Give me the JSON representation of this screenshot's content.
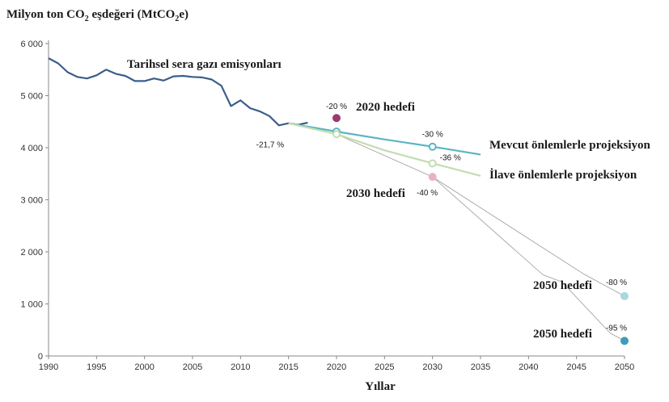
{
  "chart_data": {
    "type": "line",
    "title_parts": {
      "main": "Milyon ton CO",
      "sub": "2",
      "rest": " eşdeğeri (MtCO",
      "sub2": "2",
      "end": "e)"
    },
    "xlabel": "Yıllar",
    "xlim": [
      1990,
      2050
    ],
    "ylim": [
      0,
      6000
    ],
    "x_ticks": [
      1990,
      1995,
      2000,
      2005,
      2010,
      2015,
      2020,
      2025,
      2030,
      2035,
      2040,
      2045,
      2050
    ],
    "y_ticks": [
      {
        "value": 0,
        "label": "0"
      },
      {
        "value": 1000,
        "label": "1 000"
      },
      {
        "value": 2000,
        "label": "2 000"
      },
      {
        "value": 3000,
        "label": "3 000"
      },
      {
        "value": 4000,
        "label": "4 000"
      },
      {
        "value": 5000,
        "label": "5 000"
      },
      {
        "value": 6000,
        "label": "6 000"
      }
    ],
    "grid": false,
    "series": [
      {
        "name": "Tarihsel sera gazı emisyonları",
        "color": "#3a5e8c",
        "points": [
          [
            1990,
            5720
          ],
          [
            1991,
            5620
          ],
          [
            1992,
            5450
          ],
          [
            1993,
            5360
          ],
          [
            1994,
            5330
          ],
          [
            1995,
            5390
          ],
          [
            1996,
            5500
          ],
          [
            1997,
            5420
          ],
          [
            1998,
            5380
          ],
          [
            1999,
            5280
          ],
          [
            2000,
            5280
          ],
          [
            2001,
            5330
          ],
          [
            2002,
            5290
          ],
          [
            2003,
            5370
          ],
          [
            2004,
            5380
          ],
          [
            2005,
            5360
          ],
          [
            2006,
            5350
          ],
          [
            2007,
            5310
          ],
          [
            2008,
            5190
          ],
          [
            2009,
            4800
          ],
          [
            2010,
            4910
          ],
          [
            2011,
            4760
          ],
          [
            2012,
            4700
          ],
          [
            2013,
            4610
          ],
          [
            2014,
            4430
          ],
          [
            2015,
            4470
          ],
          [
            2016,
            4440
          ],
          [
            2017,
            4480
          ]
        ]
      },
      {
        "name": "Mevcut önlemlerle projeksiyon",
        "color": "#5bb5c2",
        "points": [
          [
            2015,
            4470
          ],
          [
            2020,
            4310
          ],
          [
            2025,
            4160
          ],
          [
            2030,
            4020
          ],
          [
            2035,
            3870
          ]
        ]
      },
      {
        "name": "İlave önlemlerle projeksiyon",
        "color": "#c3ddb0",
        "points": [
          [
            2015,
            4470
          ],
          [
            2020,
            4260
          ],
          [
            2025,
            3950
          ],
          [
            2030,
            3700
          ],
          [
            2035,
            3460
          ]
        ]
      }
    ],
    "targets": [
      {
        "name": "2020 hedefi",
        "x": 2020,
        "y": 4570,
        "pct": "-20 %",
        "color": "#9a3a6e"
      },
      {
        "name": "2030 hedefi",
        "x": 2030,
        "y": 3440,
        "pct": "-40 %",
        "color": "#eab2c4"
      },
      {
        "name": "2050 hedefi",
        "x": 2050,
        "y": 1150,
        "pct": "-80 %",
        "color": "#a8d8dc"
      },
      {
        "name": "2050 hedefi",
        "x": 2050,
        "y": 290,
        "pct": "-95 %",
        "color": "#3e9db8"
      }
    ],
    "point_labels": [
      {
        "x": 2015,
        "y": 4470,
        "text": "-21,7 %"
      },
      {
        "x": 2030,
        "y": 4020,
        "text": "-30 %"
      },
      {
        "x": 2030,
        "y": 3700,
        "text": "-36 %"
      }
    ]
  }
}
